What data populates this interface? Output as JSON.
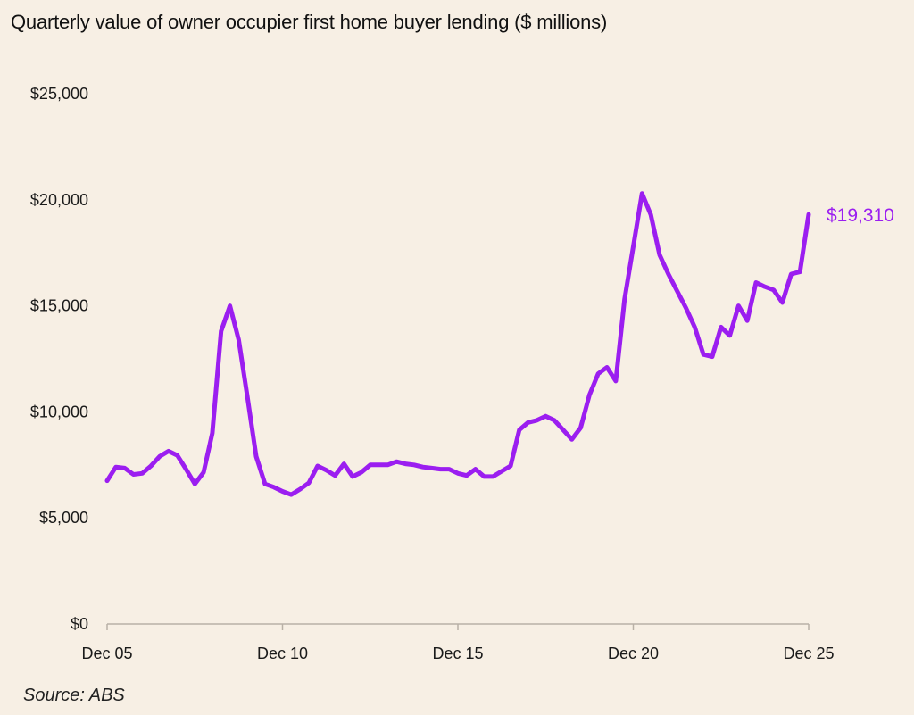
{
  "title": "Quarterly value of owner occupier first home buyer lending ($ millions)",
  "source": "Source: ABS",
  "colors": {
    "background": "#f7efe4",
    "line": "#9b1ef0",
    "axis": "#b8b0a6",
    "text": "#1a1a1a"
  },
  "chart_data": {
    "type": "line",
    "title": "Quarterly value of owner occupier first home buyer lending ($ millions)",
    "xlabel": "",
    "ylabel": "",
    "ylim": [
      0,
      25000
    ],
    "yticks": [
      0,
      5000,
      10000,
      15000,
      20000,
      25000
    ],
    "ytick_labels": [
      "$0",
      "$5,000",
      "$10,000",
      "$15,000",
      "$20,000",
      "$25,000"
    ],
    "xticks": [
      0,
      20,
      40,
      60,
      80
    ],
    "xtick_labels": [
      "Dec 05",
      "Dec 10",
      "Dec 15",
      "Dec 20",
      "Dec 25"
    ],
    "grid": false,
    "series": [
      {
        "color": "#9b1ef0",
        "end_label": "$19,310",
        "values": [
          6750,
          7400,
          7350,
          7050,
          7100,
          7450,
          7900,
          8150,
          7950,
          7300,
          6600,
          7150,
          9000,
          13800,
          15000,
          13400,
          10700,
          7900,
          6600,
          6450,
          6250,
          6100,
          6350,
          6650,
          7450,
          7250,
          7000,
          7550,
          6950,
          7150,
          7500,
          7500,
          7500,
          7650,
          7550,
          7500,
          7400,
          7350,
          7300,
          7300,
          7100,
          7000,
          7300,
          6950,
          6950,
          7200,
          7450,
          9150,
          9500,
          9600,
          9800,
          9600,
          9150,
          8700,
          9250,
          10800,
          11800,
          12100,
          11450,
          15300,
          17800,
          20300,
          19300,
          17400,
          16500,
          15700,
          14900,
          14000,
          12700,
          12600,
          14000,
          13600,
          15000,
          14300,
          16100,
          15900,
          15750,
          15150,
          16500,
          16600,
          19310
        ]
      }
    ]
  }
}
